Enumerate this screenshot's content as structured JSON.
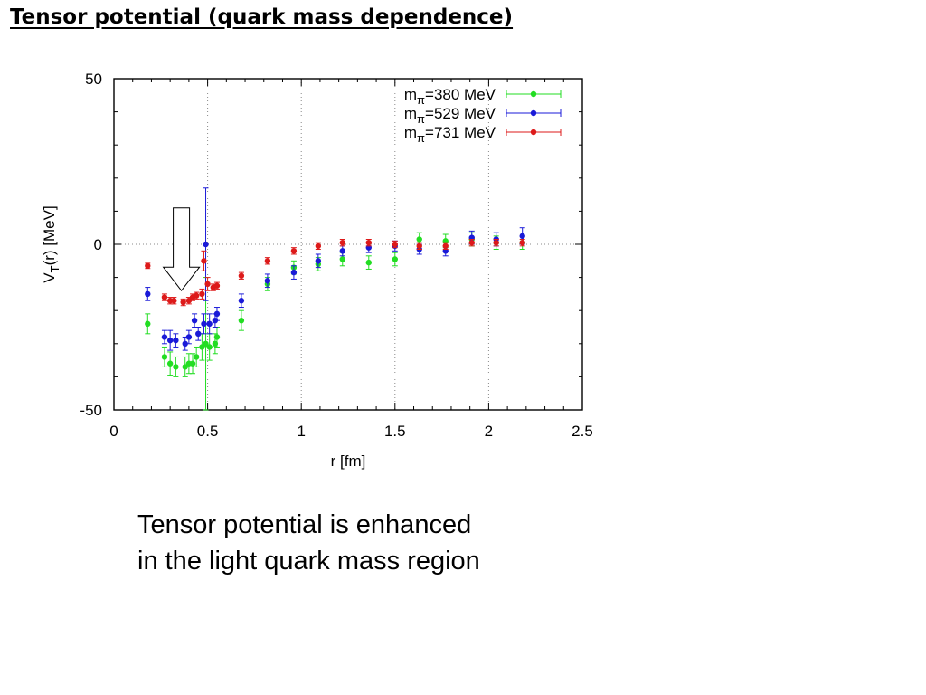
{
  "slide": {
    "title": "Tensor potential (quark mass dependence)",
    "caption_lines": [
      "Tensor potential is enhanced",
      "in the light quark mass region"
    ]
  },
  "chart_data": {
    "type": "scatter",
    "xlabel": "r [fm]",
    "ylabel": "V_T(r) [MeV]",
    "xlim": [
      0,
      2.5
    ],
    "ylim": [
      -50,
      50
    ],
    "xticks": [
      "0",
      "0.5",
      "1",
      "1.5",
      "2",
      "2.5"
    ],
    "yticks": [
      "50",
      "0",
      "-50"
    ],
    "grid": "dotted lines at y=0 and x=0.5, 1, 1.5, 2",
    "legend_position": "top-right",
    "series": [
      {
        "name": "m_π=380 MeV",
        "color": "#22dd22",
        "points": [
          {
            "x": 0.18,
            "y": -24,
            "err": 3
          },
          {
            "x": 0.27,
            "y": -34,
            "err": 3
          },
          {
            "x": 0.3,
            "y": -36,
            "err": 3.5
          },
          {
            "x": 0.33,
            "y": -37,
            "err": 3
          },
          {
            "x": 0.38,
            "y": -37,
            "err": 3
          },
          {
            "x": 0.4,
            "y": -36,
            "err": 3
          },
          {
            "x": 0.42,
            "y": -36,
            "err": 3
          },
          {
            "x": 0.44,
            "y": -34,
            "err": 3
          },
          {
            "x": 0.47,
            "y": -31,
            "err": 4
          },
          {
            "x": 0.49,
            "y": -30,
            "err": 20
          },
          {
            "x": 0.51,
            "y": -31,
            "err": 4
          },
          {
            "x": 0.54,
            "y": -30,
            "err": 3
          },
          {
            "x": 0.55,
            "y": -28,
            "err": 3
          },
          {
            "x": 0.68,
            "y": -23,
            "err": 3
          },
          {
            "x": 0.82,
            "y": -12,
            "err": 2
          },
          {
            "x": 0.96,
            "y": -7,
            "err": 2
          },
          {
            "x": 1.09,
            "y": -6,
            "err": 2
          },
          {
            "x": 1.22,
            "y": -4.5,
            "err": 2
          },
          {
            "x": 1.36,
            "y": -5.5,
            "err": 2
          },
          {
            "x": 1.5,
            "y": -4.5,
            "err": 2
          },
          {
            "x": 1.63,
            "y": 1.5,
            "err": 2
          },
          {
            "x": 1.77,
            "y": 1.0,
            "err": 2
          },
          {
            "x": 1.91,
            "y": 1.5,
            "err": 2
          },
          {
            "x": 2.04,
            "y": 0.5,
            "err": 2
          },
          {
            "x": 2.18,
            "y": 0.5,
            "err": 2
          }
        ]
      },
      {
        "name": "m_π=529 MeV",
        "color": "#1a1ad8",
        "points": [
          {
            "x": 0.18,
            "y": -15,
            "err": 2
          },
          {
            "x": 0.27,
            "y": -28,
            "err": 2
          },
          {
            "x": 0.3,
            "y": -29,
            "err": 3
          },
          {
            "x": 0.33,
            "y": -29,
            "err": 2
          },
          {
            "x": 0.38,
            "y": -30,
            "err": 2
          },
          {
            "x": 0.4,
            "y": -28,
            "err": 2
          },
          {
            "x": 0.43,
            "y": -23,
            "err": 2
          },
          {
            "x": 0.45,
            "y": -27,
            "err": 2
          },
          {
            "x": 0.48,
            "y": -24,
            "err": 3
          },
          {
            "x": 0.49,
            "y": 0,
            "err": 17
          },
          {
            "x": 0.51,
            "y": -24,
            "err": 3
          },
          {
            "x": 0.54,
            "y": -23,
            "err": 2
          },
          {
            "x": 0.55,
            "y": -21,
            "err": 2
          },
          {
            "x": 0.68,
            "y": -17,
            "err": 2
          },
          {
            "x": 0.82,
            "y": -11,
            "err": 2
          },
          {
            "x": 0.96,
            "y": -8.5,
            "err": 2
          },
          {
            "x": 1.09,
            "y": -5,
            "err": 2
          },
          {
            "x": 1.22,
            "y": -2,
            "err": 1.5
          },
          {
            "x": 1.36,
            "y": -1,
            "err": 1.5
          },
          {
            "x": 1.5,
            "y": -0.5,
            "err": 1.5
          },
          {
            "x": 1.63,
            "y": -1.5,
            "err": 1.5
          },
          {
            "x": 1.77,
            "y": -2,
            "err": 1.5
          },
          {
            "x": 1.91,
            "y": 2,
            "err": 2
          },
          {
            "x": 2.04,
            "y": 1.5,
            "err": 2
          },
          {
            "x": 2.18,
            "y": 2.5,
            "err": 2.5
          }
        ]
      },
      {
        "name": "m_π=731 MeV",
        "color": "#dd1a1a",
        "points": [
          {
            "x": 0.18,
            "y": -6.5,
            "err": 0.8
          },
          {
            "x": 0.27,
            "y": -16,
            "err": 1
          },
          {
            "x": 0.3,
            "y": -17,
            "err": 1
          },
          {
            "x": 0.32,
            "y": -17,
            "err": 1
          },
          {
            "x": 0.37,
            "y": -17.5,
            "err": 1
          },
          {
            "x": 0.4,
            "y": -17,
            "err": 1
          },
          {
            "x": 0.42,
            "y": -16,
            "err": 1
          },
          {
            "x": 0.44,
            "y": -15.5,
            "err": 1
          },
          {
            "x": 0.47,
            "y": -15,
            "err": 1.5
          },
          {
            "x": 0.48,
            "y": -5,
            "err": 3
          },
          {
            "x": 0.5,
            "y": -12,
            "err": 2
          },
          {
            "x": 0.53,
            "y": -13,
            "err": 1
          },
          {
            "x": 0.55,
            "y": -12.5,
            "err": 1
          },
          {
            "x": 0.68,
            "y": -9.5,
            "err": 1
          },
          {
            "x": 0.82,
            "y": -5,
            "err": 1
          },
          {
            "x": 0.96,
            "y": -2,
            "err": 1
          },
          {
            "x": 1.09,
            "y": -0.5,
            "err": 1
          },
          {
            "x": 1.22,
            "y": 0.5,
            "err": 1
          },
          {
            "x": 1.36,
            "y": 0.5,
            "err": 1
          },
          {
            "x": 1.5,
            "y": 0,
            "err": 1
          },
          {
            "x": 1.63,
            "y": -0.5,
            "err": 1
          },
          {
            "x": 1.77,
            "y": -0.5,
            "err": 1
          },
          {
            "x": 1.91,
            "y": 0.5,
            "err": 1
          },
          {
            "x": 2.04,
            "y": 0.5,
            "err": 1
          },
          {
            "x": 2.18,
            "y": 0.5,
            "err": 1
          }
        ]
      }
    ],
    "annotations": [
      {
        "kind": "down-arrow",
        "x": 0.36,
        "y_top": 11,
        "y_bottom": -14
      }
    ]
  }
}
